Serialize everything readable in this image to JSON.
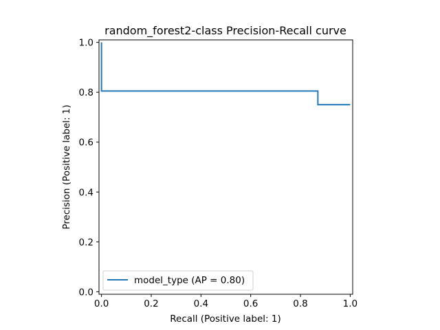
{
  "chart_data": {
    "type": "line",
    "title": "random_forest2-class Precision-Recall curve",
    "xlabel": "Recall (Positive label: 1)",
    "ylabel": "Precision (Positive label: 1)",
    "xlim": [
      -0.01,
      1.01
    ],
    "ylim": [
      -0.01,
      1.01
    ],
    "xticks": [
      0.0,
      0.2,
      0.4,
      0.6,
      0.8,
      1.0
    ],
    "xtick_labels": [
      "0.0",
      "0.2",
      "0.4",
      "0.6",
      "0.8",
      "1.0"
    ],
    "yticks": [
      0.0,
      0.2,
      0.4,
      0.6,
      0.8,
      1.0
    ],
    "ytick_labels": [
      "0.0",
      "0.2",
      "0.4",
      "0.6",
      "0.8",
      "1.0"
    ],
    "grid": false,
    "legend_position": "lower-left",
    "series": [
      {
        "name": "model_type (AP = 0.80)",
        "color": "#1f77b4",
        "drawstyle": "steps-post",
        "x": [
          1.0,
          0.87,
          0.87,
          0.0,
          0.0
        ],
        "y": [
          0.75,
          0.75,
          0.805,
          0.805,
          1.0
        ]
      }
    ]
  }
}
